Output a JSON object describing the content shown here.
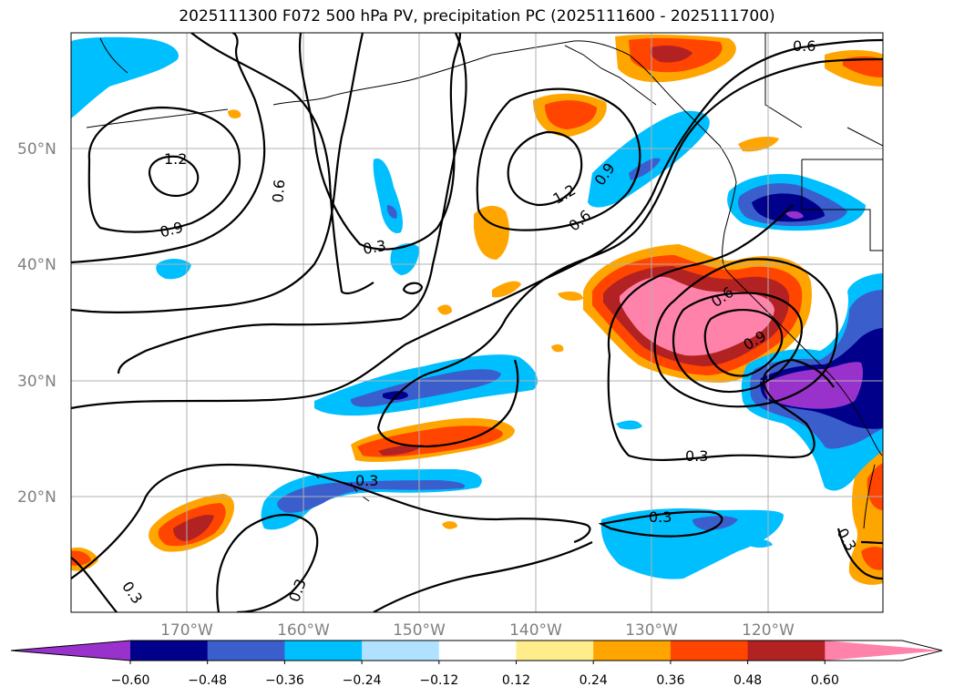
{
  "title": "2025111300 F072 500 hPa PV, precipitation PC (2025111600 - 2025111700)",
  "map": {
    "lat_ticks": [
      "50°N",
      "40°N",
      "30°N",
      "20°N"
    ],
    "lon_ticks": [
      "170°W",
      "160°W",
      "150°W",
      "140°W",
      "130°W",
      "120°W"
    ],
    "contour_labels": [
      "1.2",
      "0.9",
      "0.6",
      "0.3",
      "0.3",
      "1.2",
      "0.9",
      "0.6",
      "0.6",
      "0.6",
      "0.9",
      "0.3",
      "0.3",
      "0.3",
      "0.3",
      "0.3",
      "0.3"
    ]
  },
  "colorbar": {
    "tick_labels": [
      "−0.60",
      "−0.48",
      "−0.36",
      "−0.24",
      "−0.12",
      "0.12",
      "0.24",
      "0.36",
      "0.48",
      "0.60"
    ],
    "colors": [
      "#9932cc",
      "#00008b",
      "#3a5fcd",
      "#00bfff",
      "#b0e2ff",
      "#ffffff",
      "#ffec8b",
      "#ffa500",
      "#ff4500",
      "#b22222",
      "#ff82ab"
    ]
  }
}
